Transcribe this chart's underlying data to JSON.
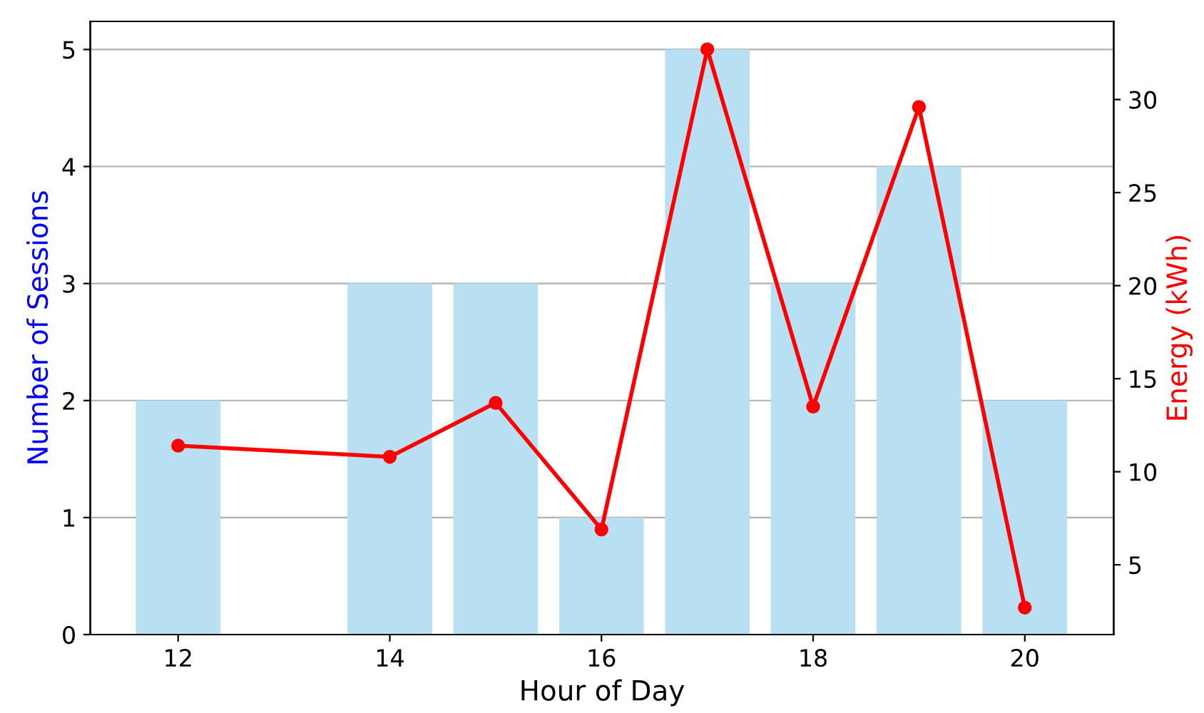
{
  "chart_data": {
    "type": "bar",
    "xlabel": "Hour of Day",
    "ylabel": "Number of Sessions",
    "y2label": "Energy (kWh)",
    "x": [
      12,
      14,
      15,
      16,
      17,
      18,
      19,
      20
    ],
    "series": [
      {
        "color": "#b8e0f2",
        "values": [
          2,
          3,
          3,
          1,
          5,
          3,
          4,
          2
        ]
      },
      {
        "type": "line",
        "axis": "y2",
        "color": "#ff0000",
        "marker": "circle",
        "line_style": "solid",
        "values": [
          11.4,
          10.8,
          13.7,
          6.9,
          32.7,
          13.5,
          29.6,
          2.7
        ]
      }
    ],
    "xlim": [
      11.17,
      20.84
    ],
    "xticks": [
      12,
      14,
      16,
      18,
      20
    ],
    "ylim": [
      0,
      5.24
    ],
    "yticks": [
      0,
      1,
      2,
      3,
      4,
      5
    ],
    "y2lim": [
      1.25,
      34.2
    ],
    "y2ticks": [
      5,
      10,
      15,
      20,
      25,
      30
    ],
    "grid": "y",
    "legend": false
  }
}
